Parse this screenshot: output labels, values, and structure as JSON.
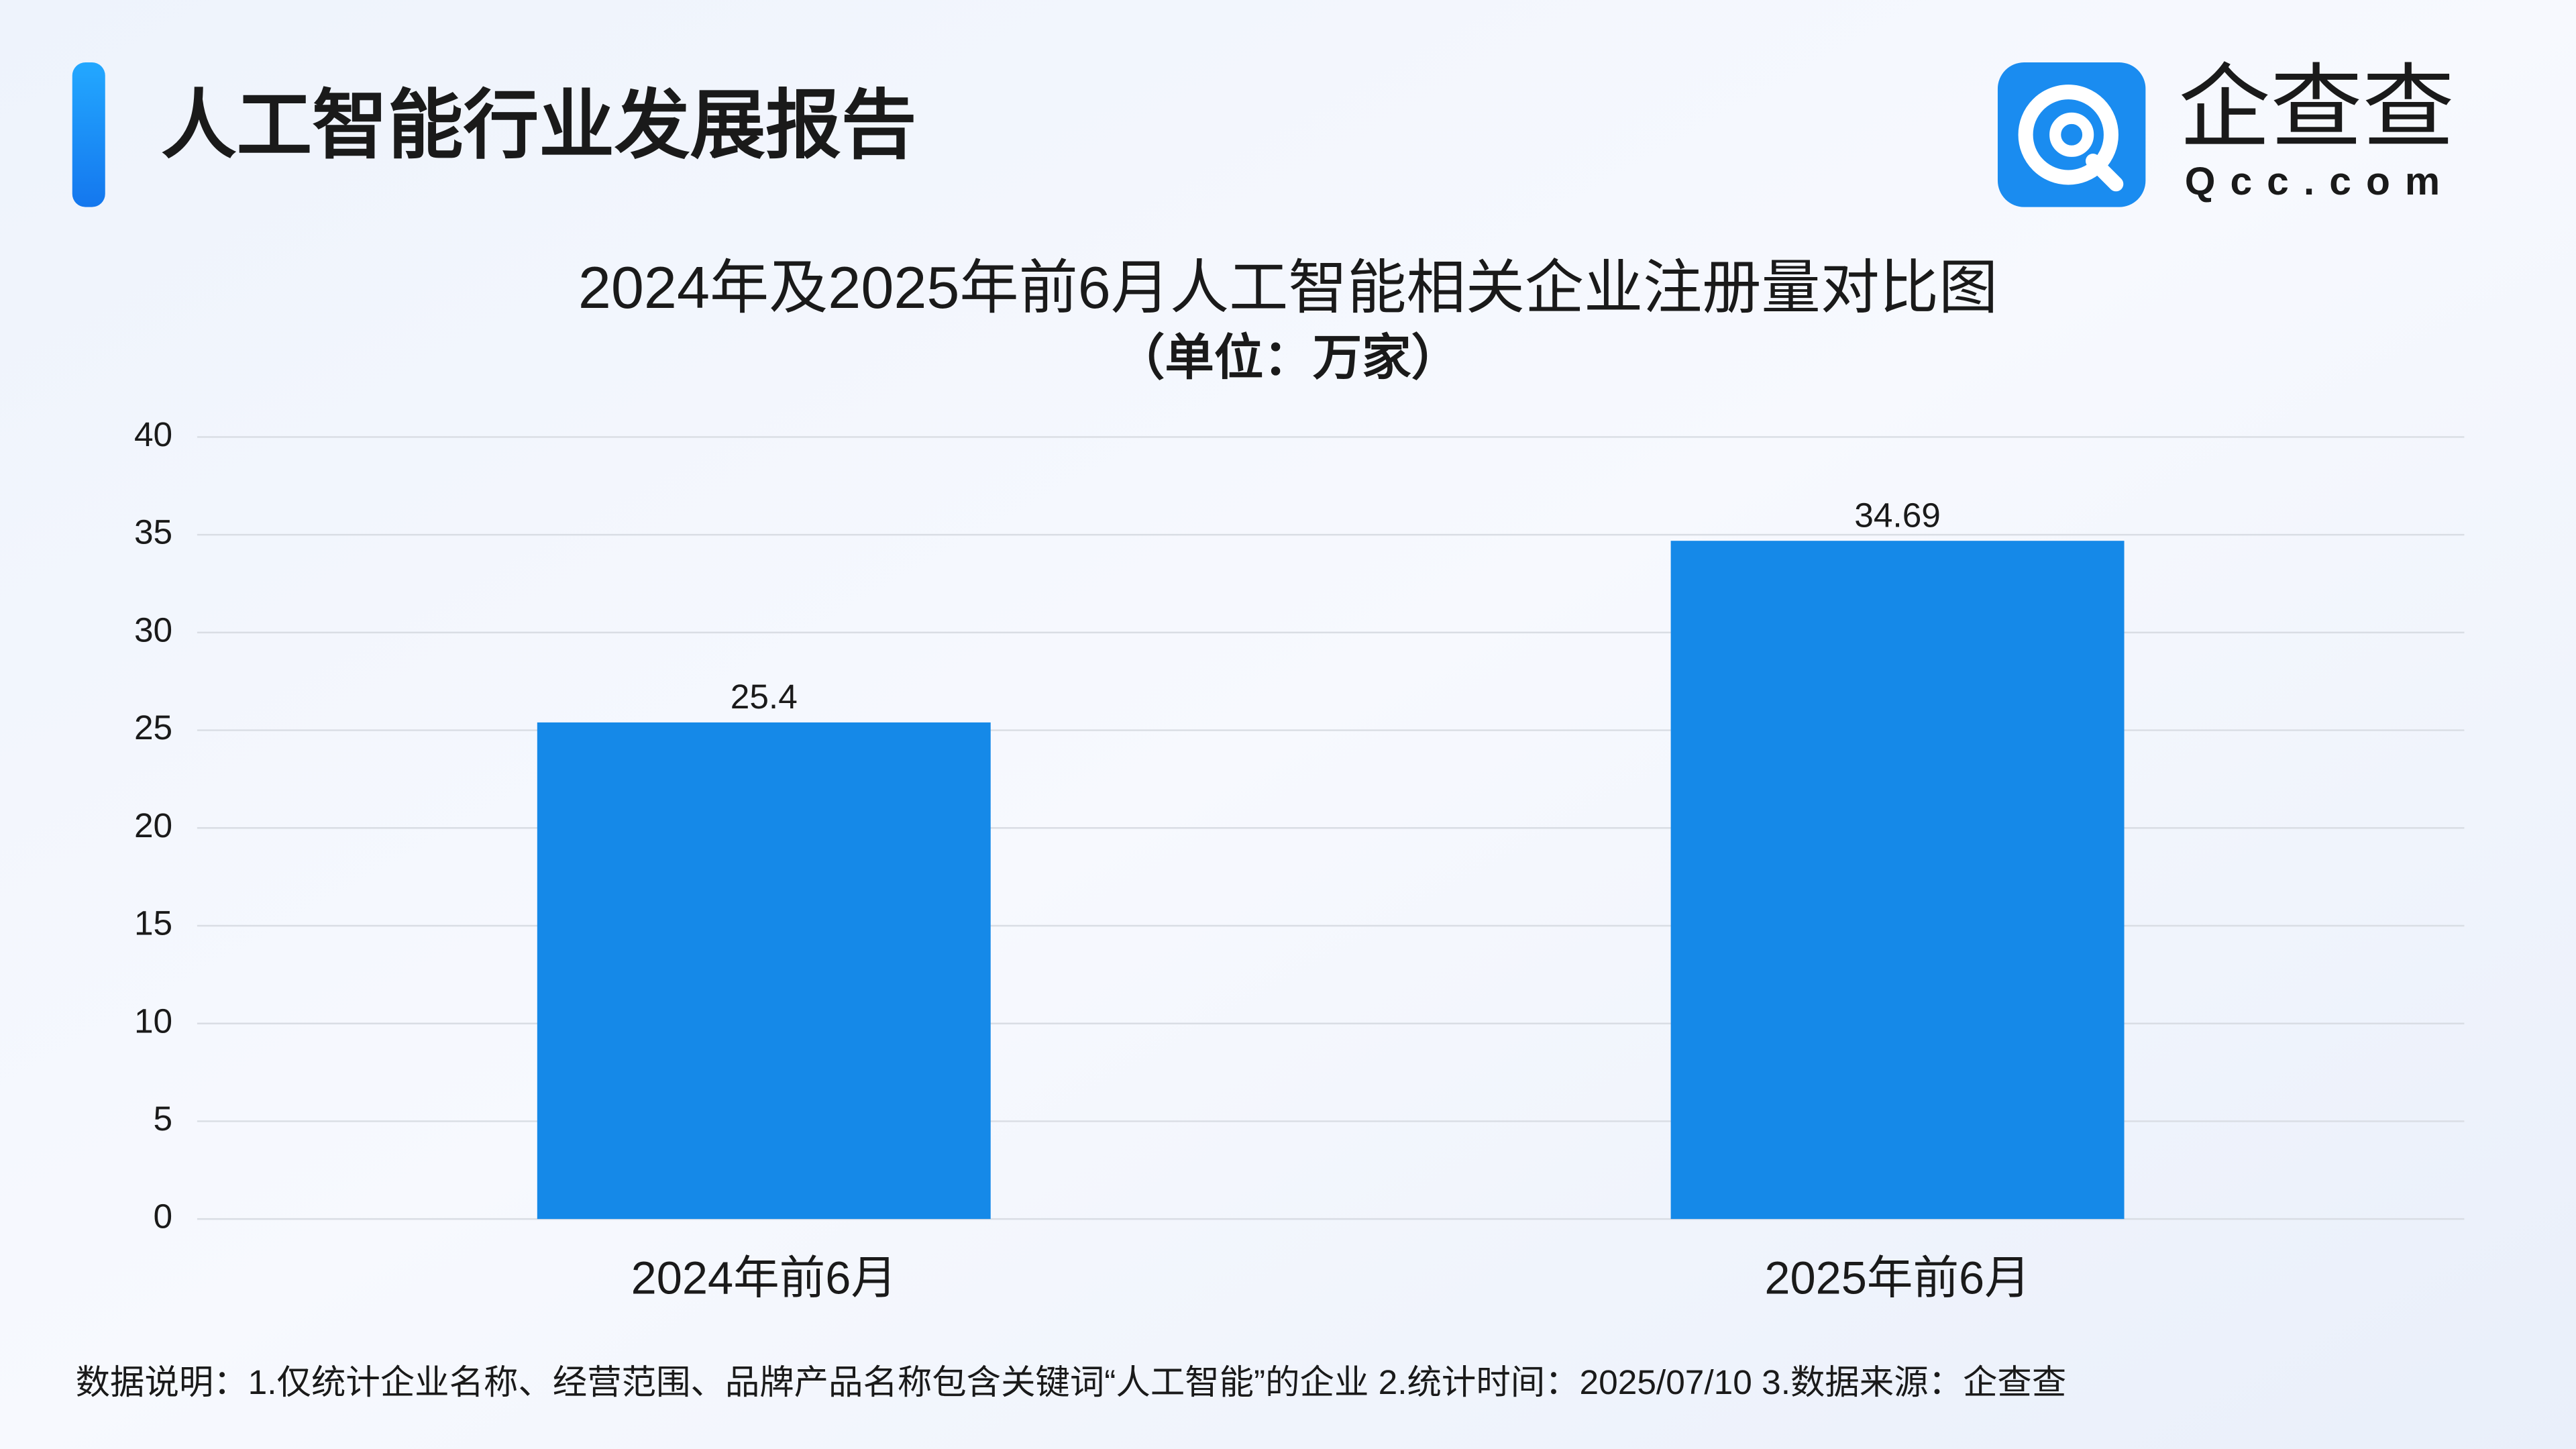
{
  "header": {
    "title": "人工智能行业发展报告",
    "logo_text": "企查查",
    "logo_domain": "Qcc.com"
  },
  "chart_data": {
    "type": "bar",
    "title": "2024年及2025年前6月人工智能相关企业注册量对比图",
    "subtitle": "（单位：万家）",
    "categories": [
      "2024年前6月",
      "2025年前6月"
    ],
    "values": [
      25.4,
      34.69
    ],
    "color": "#1589e8",
    "ylim": [
      0,
      40
    ],
    "yticks": [
      0,
      5,
      10,
      15,
      20,
      25,
      30,
      35,
      40
    ],
    "grid": true
  },
  "footnote": "数据说明：1.仅统计企业名称、经营范围、品牌产品名称包含关键词“人工智能”的企业   2.统计时间：2025/07/10    3.数据来源：企查查"
}
